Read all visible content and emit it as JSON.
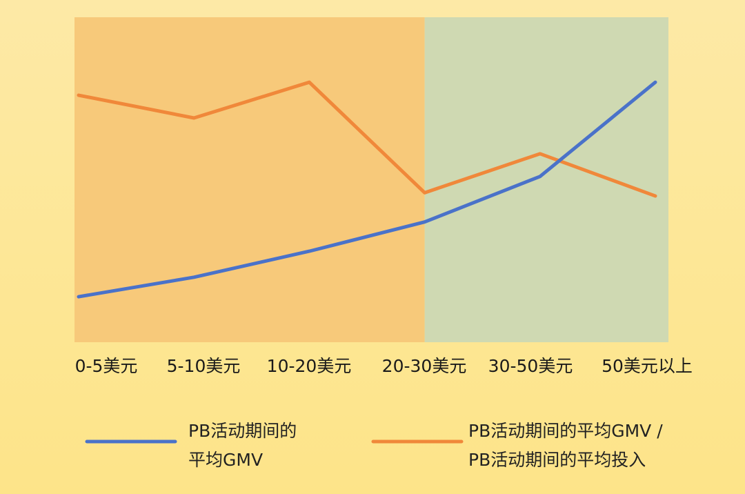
{
  "colors": {
    "background": "#fde79a",
    "region_left": "#f7c97a",
    "region_right": "#cfd9b2",
    "gmv_line": "#4a72c9",
    "ratio_line": "#f0883a"
  },
  "chart_data": {
    "type": "line",
    "categories": [
      "0-5美元",
      "5-10美元",
      "10-20美元",
      "20-30美元",
      "30-50美元",
      "50美元以上"
    ],
    "ylim": [
      0,
      100
    ],
    "grid": false,
    "legend_position": "bottom",
    "shaded_regions": [
      {
        "from_category": "0-5美元",
        "to_category": "20-30美元",
        "color": "#f7c97a"
      },
      {
        "from_category": "20-30美元",
        "to_category": "50美元以上",
        "color": "#cfd9b2"
      }
    ],
    "series": [
      {
        "name": "PB活动期间的平均GMV",
        "name_lines": [
          "PB活动期间的",
          "平均GMV"
        ],
        "color": "#4a72c9",
        "values": [
          14,
          20,
          28,
          37,
          51,
          80
        ]
      },
      {
        "name": "PB活动期间的平均GMV / PB活动期间的平均投入",
        "name_lines": [
          "PB活动期间的平均GMV /",
          "PB活动期间的平均投入"
        ],
        "color": "#f0883a",
        "values": [
          76,
          69,
          80,
          46,
          58,
          45
        ]
      }
    ]
  }
}
